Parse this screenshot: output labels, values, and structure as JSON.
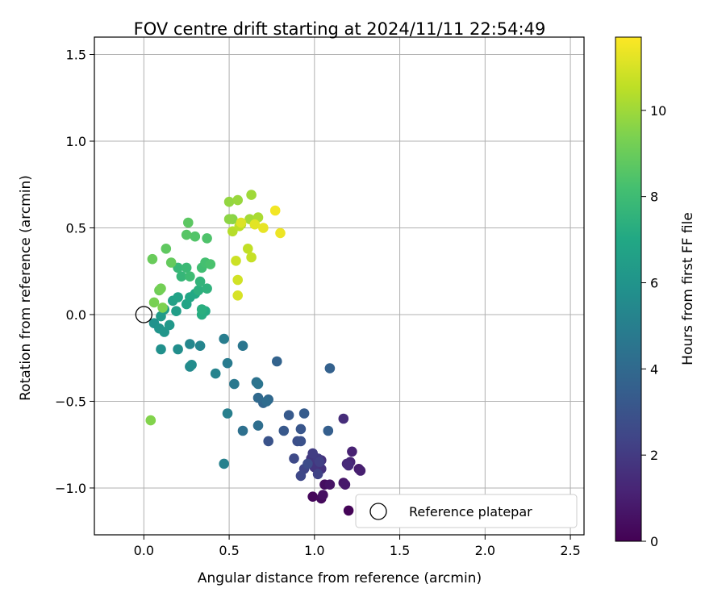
{
  "chart_data": {
    "type": "scatter",
    "title": "FOV centre drift starting at 2024/11/11 22:54:49",
    "xlabel": "Angular distance from reference (arcmin)",
    "ylabel": "Rotation from reference (arcmin)",
    "xlim": [
      -0.29,
      2.58
    ],
    "ylim": [
      -1.27,
      1.6
    ],
    "xticks": [
      0.0,
      0.5,
      1.0,
      1.5,
      2.0,
      2.5
    ],
    "yticks": [
      -1.0,
      -0.5,
      0.0,
      0.5,
      1.0,
      1.5
    ],
    "xtick_labels": [
      "0.0",
      "0.5",
      "1.0",
      "1.5",
      "2.0",
      "2.5"
    ],
    "ytick_labels": [
      "−1.0",
      "−0.5",
      "0.0",
      "0.5",
      "1.0",
      "1.5"
    ],
    "grid": true,
    "colorbar": {
      "label": "Hours from first FF file",
      "colormap": "viridis",
      "range": [
        0,
        11.7
      ],
      "ticks": [
        0,
        2,
        4,
        6,
        8,
        10
      ],
      "tick_labels": [
        "0",
        "2",
        "4",
        "6",
        "8",
        "10"
      ]
    },
    "legend": {
      "placement": "lower-right",
      "entries": [
        {
          "label": "Reference platepar",
          "marker": "open-circle",
          "x": 0.0,
          "y": 0.0
        }
      ]
    },
    "points": [
      [
        1.2,
        -1.13,
        0.1
      ],
      [
        0.99,
        -1.05,
        0.2
      ],
      [
        1.04,
        -1.06,
        0.3
      ],
      [
        1.06,
        -0.98,
        0.4
      ],
      [
        1.05,
        -1.04,
        0.5
      ],
      [
        1.09,
        -0.98,
        0.6
      ],
      [
        1.17,
        -0.97,
        0.7
      ],
      [
        1.18,
        -0.98,
        0.8
      ],
      [
        1.26,
        -0.89,
        0.9
      ],
      [
        1.27,
        -0.9,
        1.0
      ],
      [
        1.22,
        -0.79,
        1.1
      ],
      [
        1.21,
        -0.85,
        1.2
      ],
      [
        1.19,
        -0.86,
        1.3
      ],
      [
        1.2,
        -0.87,
        1.4
      ],
      [
        1.17,
        -0.6,
        1.5
      ],
      [
        1.04,
        -0.84,
        1.6
      ],
      [
        1.04,
        -0.89,
        1.7
      ],
      [
        1.0,
        -0.88,
        1.8
      ],
      [
        0.98,
        -0.83,
        1.9
      ],
      [
        1.02,
        -0.83,
        2.0
      ],
      [
        0.99,
        -0.8,
        2.1
      ],
      [
        1.03,
        -0.85,
        2.2
      ],
      [
        1.02,
        -0.92,
        2.3
      ],
      [
        0.94,
        -0.89,
        2.4
      ],
      [
        0.92,
        -0.93,
        2.5
      ],
      [
        0.88,
        -0.83,
        2.6
      ],
      [
        0.96,
        -0.86,
        2.7
      ],
      [
        0.9,
        -0.73,
        2.8
      ],
      [
        0.92,
        -0.73,
        2.9
      ],
      [
        0.73,
        -0.73,
        3.0
      ],
      [
        0.92,
        -0.66,
        3.1
      ],
      [
        0.82,
        -0.67,
        3.2
      ],
      [
        0.85,
        -0.58,
        3.3
      ],
      [
        0.94,
        -0.57,
        3.4
      ],
      [
        1.08,
        -0.67,
        3.5
      ],
      [
        1.09,
        -0.31,
        3.6
      ],
      [
        0.78,
        -0.27,
        3.7
      ],
      [
        0.7,
        -0.51,
        3.8
      ],
      [
        0.73,
        -0.49,
        3.9
      ],
      [
        0.67,
        -0.48,
        4.0
      ],
      [
        0.72,
        -0.5,
        4.1
      ],
      [
        0.67,
        -0.64,
        4.2
      ],
      [
        0.58,
        -0.67,
        4.3
      ],
      [
        0.66,
        -0.39,
        4.4
      ],
      [
        0.67,
        -0.4,
        4.5
      ],
      [
        0.58,
        -0.18,
        4.6
      ],
      [
        0.53,
        -0.4,
        4.7
      ],
      [
        0.49,
        -0.28,
        4.8
      ],
      [
        0.47,
        -0.14,
        4.9
      ],
      [
        0.49,
        -0.57,
        5.0
      ],
      [
        0.47,
        -0.86,
        5.1
      ],
      [
        0.42,
        -0.34,
        5.2
      ],
      [
        0.33,
        -0.18,
        5.3
      ],
      [
        0.27,
        -0.17,
        5.4
      ],
      [
        0.27,
        -0.3,
        5.5
      ],
      [
        0.28,
        -0.29,
        5.6
      ],
      [
        0.2,
        -0.2,
        5.7
      ],
      [
        0.1,
        -0.2,
        5.8
      ],
      [
        0.06,
        -0.05,
        5.9
      ],
      [
        0.09,
        -0.08,
        6.0
      ],
      [
        0.12,
        -0.1,
        6.1
      ],
      [
        0.15,
        -0.06,
        6.2
      ],
      [
        0.1,
        -0.01,
        6.3
      ],
      [
        0.12,
        0.03,
        6.4
      ],
      [
        0.19,
        0.02,
        6.5
      ],
      [
        0.17,
        0.08,
        6.6
      ],
      [
        0.2,
        0.1,
        6.7
      ],
      [
        0.25,
        0.06,
        6.8
      ],
      [
        0.27,
        0.1,
        6.9
      ],
      [
        0.3,
        0.12,
        7.0
      ],
      [
        0.36,
        0.02,
        7.1
      ],
      [
        0.34,
        0.0,
        7.2
      ],
      [
        0.34,
        0.03,
        7.3
      ],
      [
        0.32,
        0.14,
        7.4
      ],
      [
        0.37,
        0.15,
        7.5
      ],
      [
        0.33,
        0.19,
        7.6
      ],
      [
        0.22,
        0.22,
        7.7
      ],
      [
        0.2,
        0.27,
        7.8
      ],
      [
        0.25,
        0.27,
        7.9
      ],
      [
        0.27,
        0.22,
        8.0
      ],
      [
        0.34,
        0.27,
        8.1
      ],
      [
        0.36,
        0.3,
        8.2
      ],
      [
        0.39,
        0.29,
        8.3
      ],
      [
        0.37,
        0.44,
        8.4
      ],
      [
        0.3,
        0.45,
        8.5
      ],
      [
        0.25,
        0.46,
        8.6
      ],
      [
        0.26,
        0.53,
        8.7
      ],
      [
        0.13,
        0.38,
        8.8
      ],
      [
        0.16,
        0.3,
        8.9
      ],
      [
        0.05,
        0.32,
        9.0
      ],
      [
        0.09,
        0.14,
        9.1
      ],
      [
        0.1,
        0.15,
        9.2
      ],
      [
        0.06,
        0.07,
        9.3
      ],
      [
        0.11,
        0.04,
        9.4
      ],
      [
        0.04,
        -0.61,
        9.5
      ],
      [
        0.52,
        0.55,
        9.6
      ],
      [
        0.5,
        0.55,
        9.7
      ],
      [
        0.5,
        0.65,
        9.8
      ],
      [
        0.55,
        0.66,
        9.9
      ],
      [
        0.63,
        0.69,
        10.0
      ],
      [
        0.62,
        0.55,
        10.1
      ],
      [
        0.67,
        0.56,
        10.2
      ],
      [
        0.57,
        0.52,
        10.3
      ],
      [
        0.52,
        0.48,
        10.4
      ],
      [
        0.56,
        0.51,
        10.5
      ],
      [
        0.61,
        0.38,
        10.6
      ],
      [
        0.63,
        0.33,
        10.7
      ],
      [
        0.54,
        0.31,
        10.8
      ],
      [
        0.55,
        0.2,
        10.9
      ],
      [
        0.55,
        0.11,
        11.0
      ],
      [
        0.57,
        0.53,
        11.1
      ],
      [
        0.65,
        0.52,
        11.2
      ],
      [
        0.7,
        0.5,
        11.3
      ],
      [
        0.8,
        0.47,
        11.4
      ],
      [
        0.77,
        0.6,
        11.5
      ]
    ]
  }
}
